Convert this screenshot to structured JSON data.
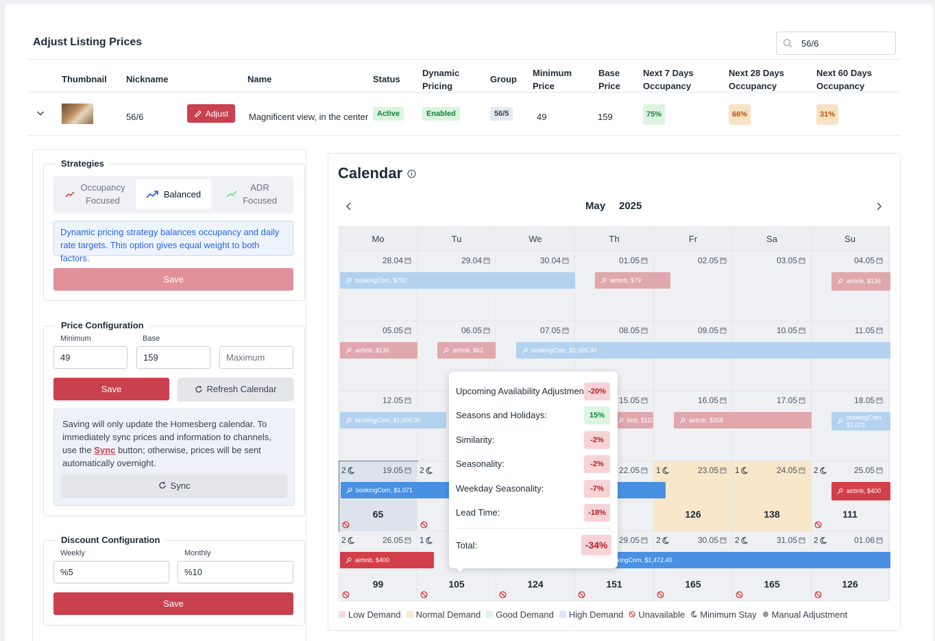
{
  "header": {
    "title": "Adjust Listing Prices",
    "search_value": "56/6"
  },
  "table": {
    "columns": [
      "Thumbnail",
      "Nickname",
      "Name",
      "Status",
      "Dynamic Pricing",
      "Group",
      "Minimum Price",
      "Base Price",
      "Next 7 Days Occupancy",
      "Next 28 Days Occupancy",
      "Next 60 Days Occupancy"
    ],
    "col_labels": {
      "thumbnail": "Thumbnail",
      "nickname": "Nickname",
      "name": "Name",
      "status": "Status",
      "dynamic_1": "Dynamic",
      "dynamic_2": "Pricing",
      "group": "Group",
      "min_1": "Minimum",
      "min_2": "Price",
      "base_1": "Base",
      "base_2": "Price",
      "n7_1": "Next 7 Days",
      "n7_2": "Occupancy",
      "n28_1": "Next 28 Days",
      "n28_2": "Occupancy",
      "n60_1": "Next 60 Days",
      "n60_2": "Occupancy"
    },
    "row": {
      "nickname": "56/6",
      "adjust_label": "Adjust",
      "name": "Magnificent view, in the center",
      "status": "Active",
      "dynamic_pricing": "Enabled",
      "group": "56/5",
      "min_price": "49",
      "base_price": "159",
      "occ7": "75%",
      "occ28": "66%",
      "occ60": "31%"
    }
  },
  "strategies": {
    "legend": "Strategies",
    "options": [
      {
        "line1": "Occupancy",
        "line2": "Focused",
        "icon": "trend-icon-red"
      },
      {
        "line1": "Balanced",
        "line2": "",
        "icon": "trend-icon-blue"
      },
      {
        "line1": "ADR",
        "line2": "Focused",
        "icon": "trend-icon-green"
      }
    ],
    "selected": "Balanced",
    "description": "Dynamic pricing strategy balances occupancy and daily rate targets. This option gives equal weight to both factors.",
    "save_label": "Save"
  },
  "price_config": {
    "legend": "Price Configuration",
    "minimum_label": "Minimum",
    "minimum_value": "49",
    "base_label": "Base",
    "base_value": "159",
    "maximum_placeholder": "Maximum",
    "save_label": "Save",
    "refresh_label": "Refresh Calendar",
    "note_1": "Saving will only update the Homesberg calendar. To immediately sync prices and information to channels, use the ",
    "note_link": "Sync",
    "note_2": " button; otherwise, prices will be sent automatically overnight.",
    "sync_label": "Sync"
  },
  "discount_config": {
    "legend": "Discount Configuration",
    "weekly_label": "Weekly",
    "weekly_value": "%5",
    "monthly_label": "Monthly",
    "monthly_value": "%10",
    "save_label": "Save"
  },
  "calendar": {
    "title": "Calendar",
    "month": "May",
    "year": "2025",
    "weekdays": [
      "Mo",
      "Tu",
      "We",
      "Th",
      "Fr",
      "Sa",
      "Su"
    ],
    "weeks": [
      [
        {
          "date": "28.04",
          "stay": "",
          "price": "",
          "demand": "none",
          "na": false
        },
        {
          "date": "29.04",
          "stay": "",
          "price": "",
          "demand": "none",
          "na": false
        },
        {
          "date": "30.04",
          "stay": "",
          "price": "",
          "demand": "none",
          "na": false
        },
        {
          "date": "01.05",
          "stay": "",
          "price": "",
          "demand": "none",
          "na": false
        },
        {
          "date": "02.05",
          "stay": "",
          "price": "",
          "demand": "none",
          "na": false
        },
        {
          "date": "03.05",
          "stay": "",
          "price": "",
          "demand": "none",
          "na": false
        },
        {
          "date": "04.05",
          "stay": "",
          "price": "",
          "demand": "none",
          "na": false
        }
      ],
      [
        {
          "date": "05.05",
          "stay": "",
          "price": "",
          "demand": "none",
          "na": false
        },
        {
          "date": "06.05",
          "stay": "",
          "price": "",
          "demand": "none",
          "na": false
        },
        {
          "date": "07.05",
          "stay": "",
          "price": "",
          "demand": "none",
          "na": false
        },
        {
          "date": "08.05",
          "stay": "",
          "price": "",
          "demand": "none",
          "na": false
        },
        {
          "date": "09.05",
          "stay": "",
          "price": "",
          "demand": "none",
          "na": false
        },
        {
          "date": "10.05",
          "stay": "",
          "price": "",
          "demand": "none",
          "na": false
        },
        {
          "date": "11.05",
          "stay": "",
          "price": "",
          "demand": "none",
          "na": false
        }
      ],
      [
        {
          "date": "12.05",
          "stay": "",
          "price": "",
          "demand": "none",
          "na": false
        },
        {
          "date": "",
          "stay": "",
          "price": "",
          "demand": "none",
          "na": false
        },
        {
          "date": "",
          "stay": "",
          "price": "",
          "demand": "none",
          "na": false
        },
        {
          "date": "15.05",
          "stay": "",
          "price": "",
          "demand": "none",
          "na": false
        },
        {
          "date": "16.05",
          "stay": "",
          "price": "",
          "demand": "none",
          "na": false
        },
        {
          "date": "17.05",
          "stay": "",
          "price": "",
          "demand": "none",
          "na": false
        },
        {
          "date": "18.05",
          "stay": "",
          "price": "",
          "demand": "none",
          "na": false
        }
      ],
      [
        {
          "date": "19.05",
          "stay": "2",
          "price": "65",
          "demand": "selected",
          "na": true
        },
        {
          "date": "",
          "stay": "2",
          "price": "",
          "demand": "none",
          "na": true
        },
        {
          "date": "",
          "stay": "",
          "price": "",
          "demand": "none",
          "na": false
        },
        {
          "date": "22.05",
          "stay": "",
          "price": "5",
          "demand": "none",
          "na": false
        },
        {
          "date": "23.05",
          "stay": "1",
          "price": "126",
          "demand": "normal",
          "na": false
        },
        {
          "date": "24.05",
          "stay": "1",
          "price": "138",
          "demand": "normal",
          "na": false
        },
        {
          "date": "25.05",
          "stay": "2",
          "price": "111",
          "demand": "none",
          "na": true
        }
      ],
      [
        {
          "date": "26.05",
          "stay": "2",
          "price": "99",
          "demand": "none",
          "na": true
        },
        {
          "date": "",
          "stay": "1",
          "price": "105",
          "demand": "none",
          "na": true
        },
        {
          "date": "",
          "stay": "",
          "price": "124",
          "demand": "none",
          "na": true
        },
        {
          "date": "29.05",
          "stay": "",
          "price": "151",
          "demand": "none",
          "na": true
        },
        {
          "date": "30.05",
          "stay": "2",
          "price": "165",
          "demand": "none",
          "na": true
        },
        {
          "date": "31.05",
          "stay": "2",
          "price": "165",
          "demand": "none",
          "na": true
        },
        {
          "date": "01.06",
          "stay": "2",
          "price": "126",
          "demand": "none",
          "na": true
        }
      ]
    ],
    "bookings": [
      {
        "text": "bookingCom, $792",
        "style": "lb"
      },
      {
        "text": "airbnb, $79",
        "style": "lr"
      },
      {
        "text": "airbnb, $136",
        "style": "lr",
        "two": true
      },
      {
        "text": "airbnb, $136",
        "style": "lr"
      },
      {
        "text": "airbnb, $62",
        "style": "lr"
      },
      {
        "text": "bookingCom, $1,005.30",
        "style": "lb"
      },
      {
        "text": "bookingCom, $1,005.30",
        "style": "lb"
      },
      {
        "text": "bnb, $110",
        "style": "lr"
      },
      {
        "text": "airbnb, $358",
        "style": "lr"
      },
      {
        "text": "bookingCom, $1,071",
        "style": "lb",
        "two": true
      },
      {
        "text": "bookingCom, $1,071",
        "style": "b"
      },
      {
        "text": "airbnb, $400",
        "style": "r",
        "two": true
      },
      {
        "text": "airbnb, $400",
        "style": "r"
      },
      {
        "text": "ookingCom, $1,472.40",
        "style": "b"
      }
    ],
    "tooltip": {
      "rows": [
        {
          "label": "Upcoming Availability Adjustment:",
          "value": "-20%",
          "kind": "neg"
        },
        {
          "label": "Seasons and Holidays:",
          "value": "15%",
          "kind": "pos"
        },
        {
          "label": "Similarity:",
          "value": "-2%",
          "kind": "neg"
        },
        {
          "label": "Seasonality:",
          "value": "-2%",
          "kind": "neg"
        },
        {
          "label": "Weekday Seasonality:",
          "value": "-7%",
          "kind": "neg"
        },
        {
          "label": "Lead Time:",
          "value": "-18%",
          "kind": "neg"
        }
      ],
      "total_label": "Total:",
      "total_value": "-34%"
    },
    "legend": {
      "low": "Low Demand",
      "normal": "Normal Demand",
      "good": "Good Demand",
      "high": "High Demand",
      "unavailable": "Unavailable",
      "min_stay": "Minimum Stay",
      "manual": "Manual Adjustment"
    }
  },
  "colors": {
    "accent_red": "#c9404f",
    "active_green_bg": "#d9f5dd",
    "low_demand": "#f7d9dc",
    "normal_demand": "#f8e7c9",
    "good_demand": "#dcf5e0",
    "high_demand": "#dbe4fb"
  }
}
